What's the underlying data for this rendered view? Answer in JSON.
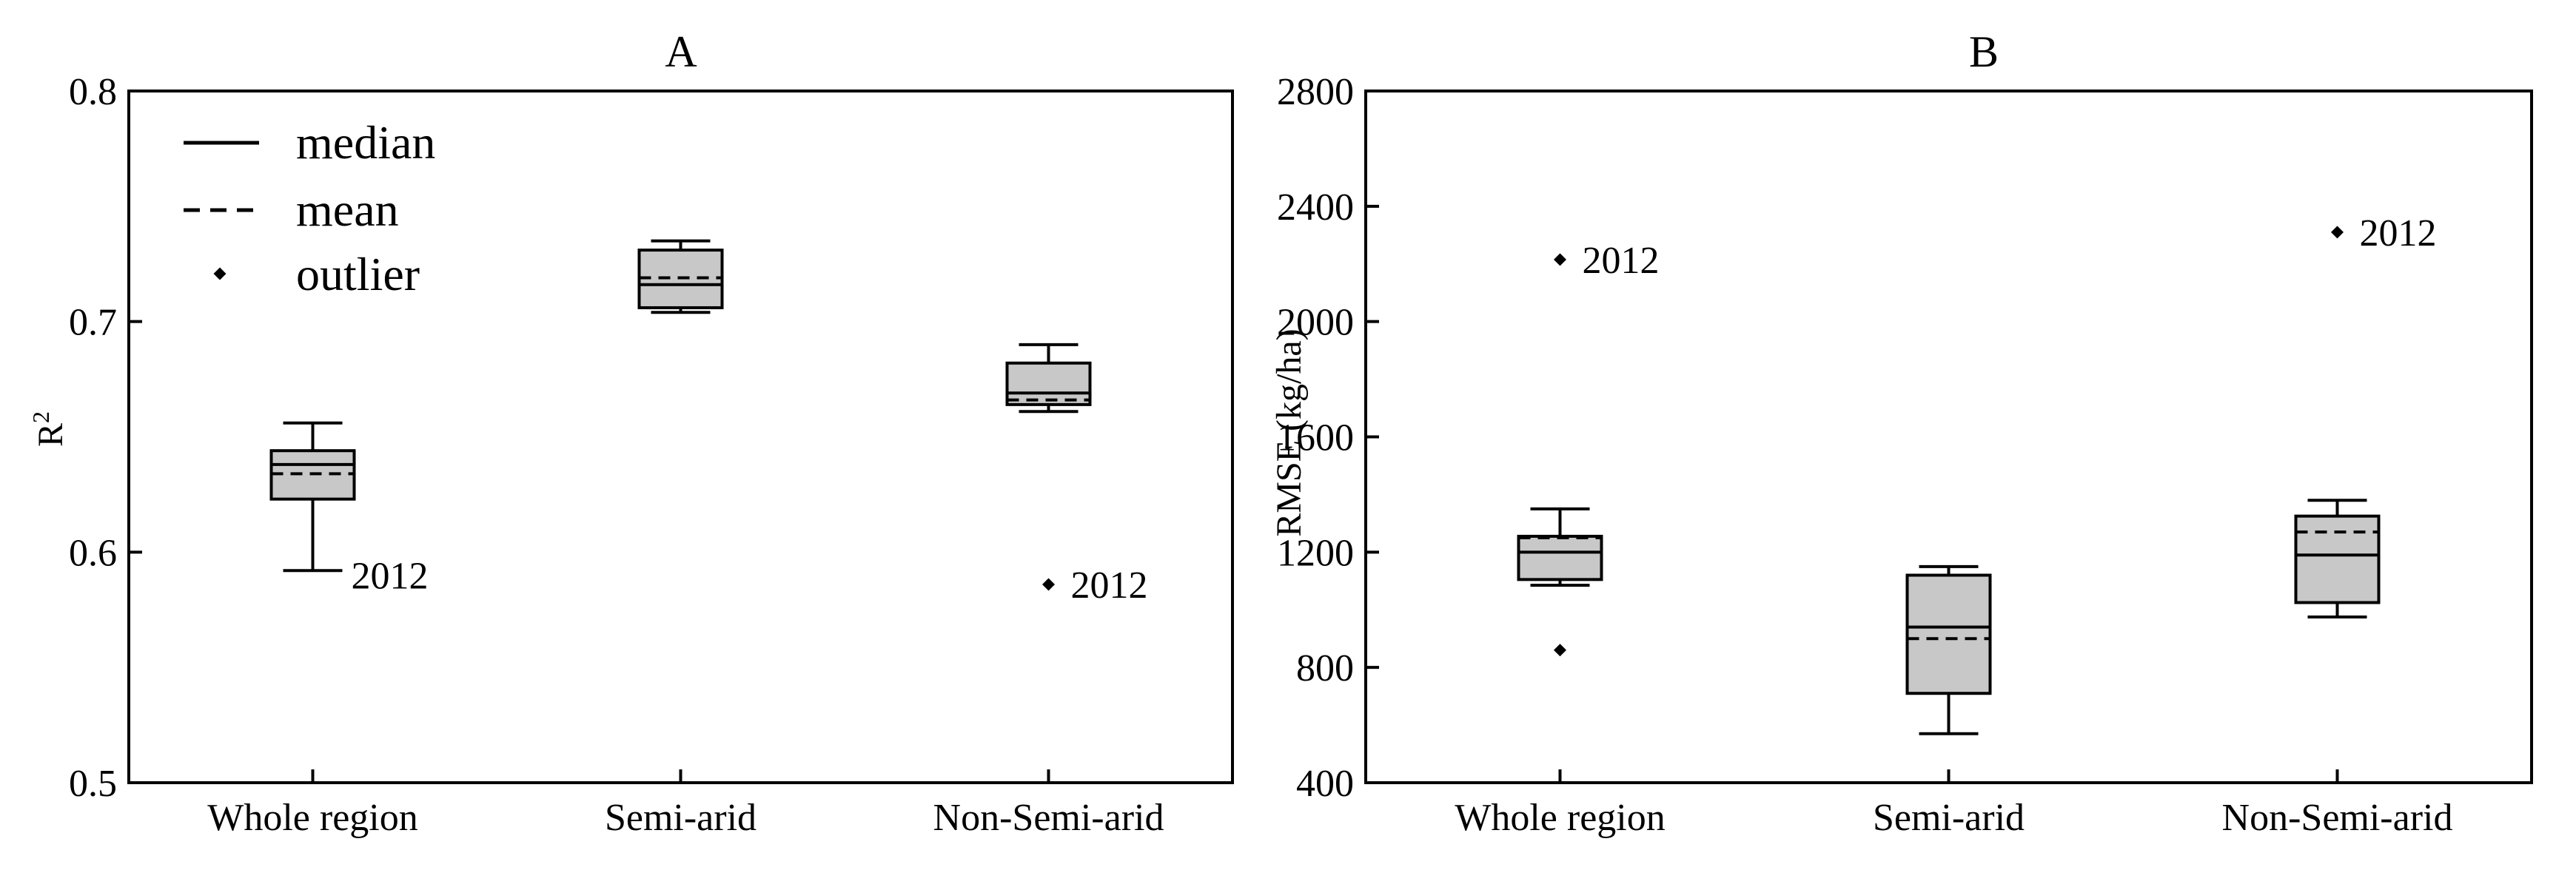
{
  "chart_data": [
    {
      "type": "box",
      "title": "A",
      "xlabel": "",
      "ylabel": "R",
      "ylabel_superscript": "2",
      "ylim": [
        0.5,
        0.8
      ],
      "yticks": [
        "0.5",
        "0.6",
        "0.7",
        "0.8"
      ],
      "ytick_values": [
        0.5,
        0.6,
        0.7,
        0.8
      ],
      "categories": [
        "Whole region",
        "Semi-arid",
        "Non-Semi-arid"
      ],
      "boxes": [
        {
          "category": "Whole region",
          "whisker_low": 0.592,
          "q1": 0.623,
          "median": 0.638,
          "mean": 0.634,
          "q3": 0.644,
          "whisker_high": 0.656,
          "outliers": [],
          "annotations": [
            {
              "text": "2012",
              "y": 0.59
            }
          ]
        },
        {
          "category": "Semi-arid",
          "whisker_low": 0.704,
          "q1": 0.706,
          "median": 0.716,
          "mean": 0.719,
          "q3": 0.731,
          "whisker_high": 0.735,
          "outliers": [],
          "annotations": []
        },
        {
          "category": "Non-Semi-arid",
          "whisker_low": 0.661,
          "q1": 0.664,
          "median": 0.669,
          "mean": 0.666,
          "q3": 0.682,
          "whisker_high": 0.69,
          "outliers": [
            {
              "value": 0.586,
              "label": "2012"
            }
          ],
          "annotations": []
        }
      ],
      "legend": {
        "position": "top-left",
        "entries": [
          {
            "label": "median",
            "style": "solid-line"
          },
          {
            "label": "mean",
            "style": "dashed-line"
          },
          {
            "label": "outlier",
            "style": "diamond"
          }
        ]
      },
      "colors": {
        "box_fill": "#c8c8c8",
        "stroke": "#000000"
      }
    },
    {
      "type": "box",
      "title": "B",
      "xlabel": "",
      "ylabel": "RMSE (kg/ha)",
      "ylim": [
        400,
        2800
      ],
      "yticks": [
        "400",
        "800",
        "1200",
        "1600",
        "2000",
        "2400",
        "2800"
      ],
      "ytick_values": [
        400,
        800,
        1200,
        1600,
        2000,
        2400,
        2800
      ],
      "categories": [
        "Whole region",
        "Semi-arid",
        "Non-Semi-arid"
      ],
      "boxes": [
        {
          "category": "Whole region",
          "whisker_low": 1085,
          "q1": 1105,
          "median": 1200,
          "mean": 1250,
          "q3": 1255,
          "whisker_high": 1350,
          "outliers": [
            {
              "value": 2215,
              "label": "2012"
            },
            {
              "value": 860,
              "label": ""
            }
          ],
          "annotations": []
        },
        {
          "category": "Semi-arid",
          "whisker_low": 570,
          "q1": 710,
          "median": 940,
          "mean": 900,
          "q3": 1120,
          "whisker_high": 1150,
          "outliers": [],
          "annotations": []
        },
        {
          "category": "Non-Semi-arid",
          "whisker_low": 975,
          "q1": 1025,
          "median": 1190,
          "mean": 1270,
          "q3": 1325,
          "whisker_high": 1380,
          "outliers": [
            {
              "value": 2310,
              "label": "2012"
            }
          ],
          "annotations": []
        }
      ],
      "colors": {
        "box_fill": "#c8c8c8",
        "stroke": "#000000"
      }
    }
  ]
}
